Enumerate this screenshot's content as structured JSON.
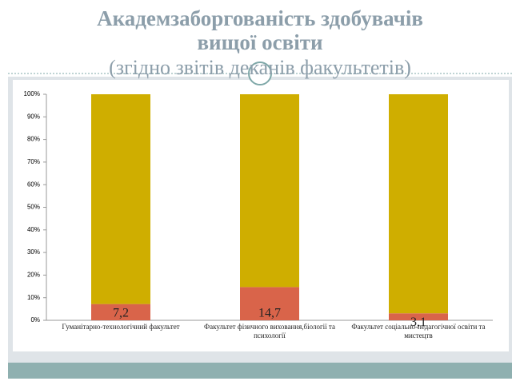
{
  "chart_data": {
    "type": "stacked_bar",
    "title": "Академзаборгованість здобувачів вищої освіти",
    "subtitle": "(згідно звітів деканів факультетів)",
    "categories": [
      "Гуманітарно-технологічний факультет",
      "Факультет фізичного виховання,біології та психології",
      "Факультет соціально-педагогічної освіти та мистецтв"
    ],
    "series": [
      {
        "color": "#d9644a",
        "values": [
          7.2,
          14.7,
          3.1
        ],
        "value_labels": [
          "7,2",
          "14,7",
          "3,1"
        ]
      },
      {
        "color": "#cfae00",
        "values": [
          92.8,
          85.3,
          96.9
        ]
      }
    ],
    "ylim": [
      0,
      100
    ],
    "yticks": [
      {
        "value": 0,
        "label": "0%"
      },
      {
        "value": 10,
        "label": "10%"
      },
      {
        "value": 20,
        "label": "20%"
      },
      {
        "value": 30,
        "label": "30%"
      },
      {
        "value": 40,
        "label": "40%"
      },
      {
        "value": 50,
        "label": "50%"
      },
      {
        "value": 60,
        "label": "60%"
      },
      {
        "value": 70,
        "label": "70%"
      },
      {
        "value": 80,
        "label": "80%"
      },
      {
        "value": 90,
        "label": "90%"
      },
      {
        "value": 100,
        "label": "100%"
      }
    ],
    "grid": false
  }
}
